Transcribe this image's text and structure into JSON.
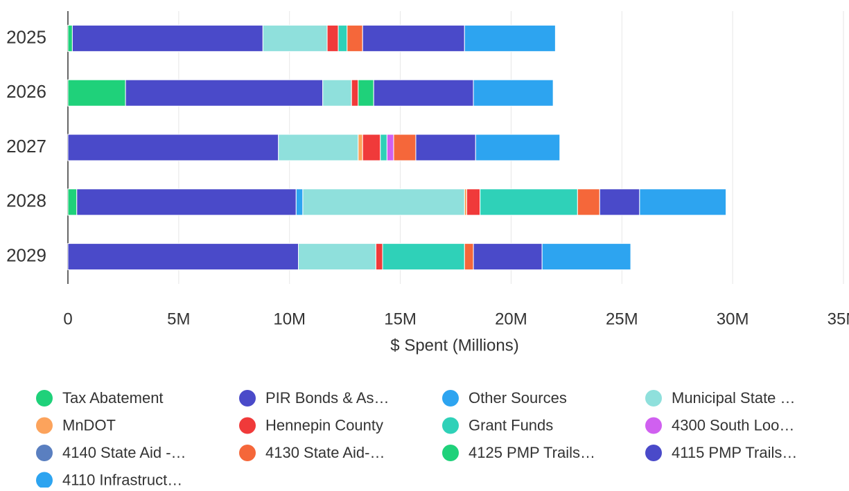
{
  "chart_data": {
    "type": "stacked_barh",
    "categories": [
      "2025",
      "2026",
      "2027",
      "2028",
      "2029"
    ],
    "x_label": "$ Spent (Millions)",
    "xlim": [
      0,
      35
    ],
    "xticks": [
      0,
      {
        "value": 5,
        "label": "5M"
      },
      {
        "value": 10,
        "label": "10M"
      },
      {
        "value": 15,
        "label": "15M"
      },
      {
        "value": 20,
        "label": "20M"
      },
      {
        "value": 25,
        "label": "25M"
      },
      {
        "value": 30,
        "label": "30M"
      },
      {
        "value": 35,
        "label": "35M"
      }
    ],
    "grid": true,
    "series": [
      {
        "name": "Tax Abatement",
        "color": "#1fd17a",
        "values": [
          0.2,
          2.6,
          0,
          0.4,
          0
        ]
      },
      {
        "name": "PIR Bonds & As…",
        "color": "#4a4ac9",
        "values": [
          8.6,
          8.9,
          9.5,
          9.9,
          10.4
        ]
      },
      {
        "name": "Other Sources",
        "color": "#2da4f0",
        "values": [
          0,
          0,
          0,
          0.3,
          0
        ]
      },
      {
        "name": "Municipal State …",
        "color": "#8fe0dc",
        "values": [
          2.9,
          1.3,
          3.6,
          7.3,
          3.5
        ]
      },
      {
        "name": "MnDOT",
        "color": "#fca35c",
        "values": [
          0,
          0,
          0.2,
          0.1,
          0
        ]
      },
      {
        "name": "Hennepin County",
        "color": "#f03a3a",
        "values": [
          0.5,
          0.3,
          0.8,
          0.6,
          0.3
        ]
      },
      {
        "name": "Grant Funds",
        "color": "#2fd1b8",
        "values": [
          0.4,
          0,
          0.3,
          4.4,
          3.7
        ]
      },
      {
        "name": "4300 South Loo…",
        "color": "#d060f0",
        "values": [
          0,
          0,
          0.3,
          0,
          0
        ]
      },
      {
        "name": "4140 State Aid -…",
        "color": "#5a7fc0",
        "values": [
          0,
          0,
          0,
          0,
          0
        ]
      },
      {
        "name": "4130 State Aid-…",
        "color": "#f5673a",
        "values": [
          0.7,
          0,
          1.0,
          1.0,
          0.4
        ]
      },
      {
        "name": "4125 PMP Trails…",
        "color": "#1fd17a",
        "values": [
          0,
          0.7,
          0,
          0,
          0
        ]
      },
      {
        "name": "4115 PMP Trails…",
        "color": "#4a4ac9",
        "values": [
          4.6,
          4.5,
          2.7,
          1.8,
          3.1
        ]
      },
      {
        "name": "4110 Infrastruct…",
        "color": "#2da4f0",
        "values": [
          4.1,
          3.6,
          3.8,
          3.9,
          4.0
        ]
      }
    ]
  }
}
